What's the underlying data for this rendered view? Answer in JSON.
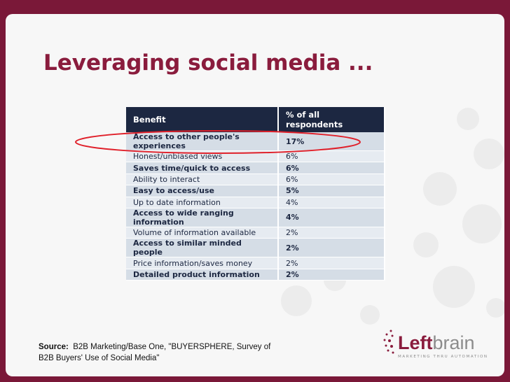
{
  "header": {
    "title": "Leveraging social media ..."
  },
  "table": {
    "columns": [
      "Benefit",
      "% of all respondents"
    ],
    "rows": [
      {
        "benefit": "Access to other people's experiences",
        "percent": "17%",
        "bold": true
      },
      {
        "benefit": "Honest/unbiased views",
        "percent": "6%",
        "bold": false
      },
      {
        "benefit": "Saves time/quick to access",
        "percent": "6%",
        "bold": true
      },
      {
        "benefit": "Ability to interact",
        "percent": "6%",
        "bold": false
      },
      {
        "benefit": "Easy to access/use",
        "percent": "5%",
        "bold": true
      },
      {
        "benefit": "Up to date information",
        "percent": "4%",
        "bold": false
      },
      {
        "benefit": "Access to wide ranging information",
        "percent": "4%",
        "bold": true
      },
      {
        "benefit": "Volume of information available",
        "percent": "2%",
        "bold": false
      },
      {
        "benefit": "Access to similar minded people",
        "percent": "2%",
        "bold": true
      },
      {
        "benefit": "Price information/saves money",
        "percent": "2%",
        "bold": false
      },
      {
        "benefit": "Detailed product information",
        "percent": "2%",
        "bold": true
      }
    ]
  },
  "source": {
    "label": "Source:",
    "text": "B2B Marketing/Base One, \"BUYERSPHERE, Survey of  B2B Buyers' Use of Social Media\""
  },
  "logo": {
    "brand_bold": "Left",
    "brand_light": "brain",
    "tagline": "MARKETING THRU AUTOMATION"
  }
}
